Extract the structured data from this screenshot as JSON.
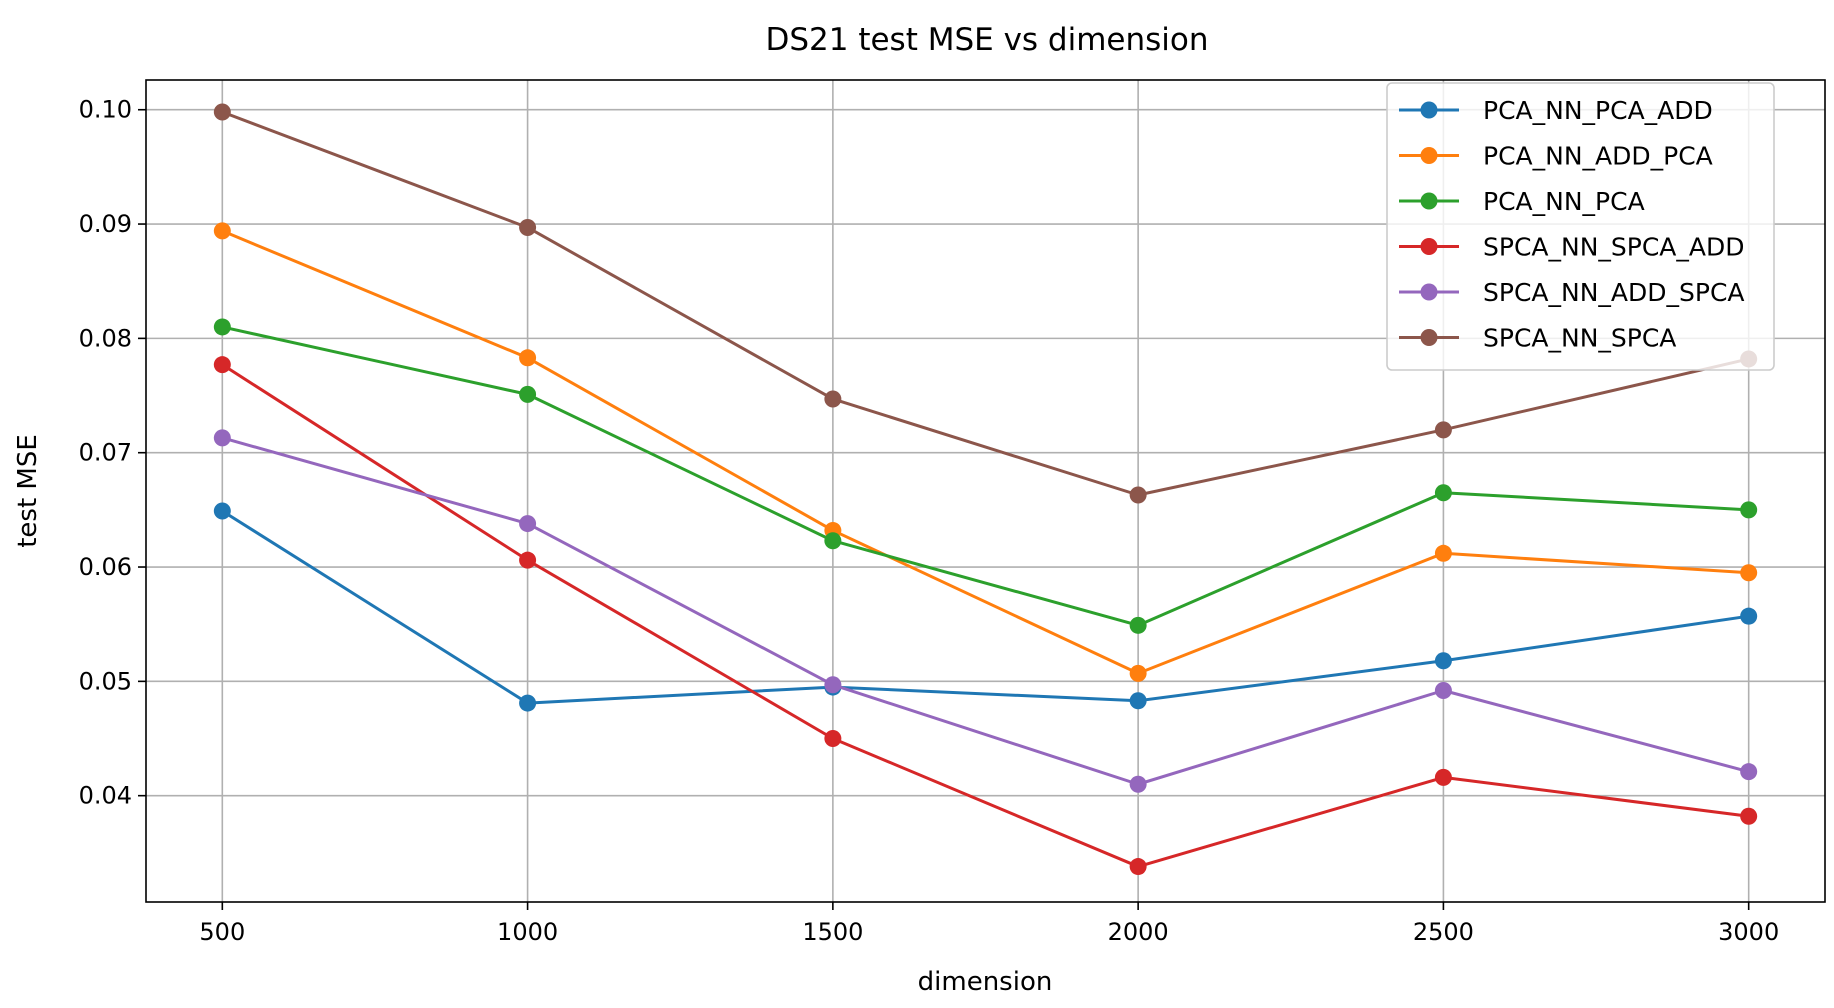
{
  "chart_data": {
    "type": "line",
    "title": "DS21 test MSE vs dimension",
    "xlabel": "dimension",
    "ylabel": "test MSE",
    "x": [
      500,
      1000,
      1500,
      2000,
      2500,
      3000
    ],
    "xlim": [
      375,
      3125
    ],
    "ylim": [
      0.0307,
      0.1026
    ],
    "xticks": [
      "500",
      "1000",
      "1500",
      "2000",
      "2500",
      "3000"
    ],
    "yticks": [
      "0.04",
      "0.05",
      "0.06",
      "0.07",
      "0.08",
      "0.09",
      "0.10"
    ],
    "grid": true,
    "legend_position": "upper right",
    "series": [
      {
        "name": "PCA_NN_PCA_ADD",
        "color": "#1f77b4",
        "values": [
          0.0649,
          0.0481,
          0.0495,
          0.0483,
          0.0518,
          0.0557
        ]
      },
      {
        "name": "PCA_NN_ADD_PCA",
        "color": "#ff7f0e",
        "values": [
          0.0894,
          0.0783,
          0.0632,
          0.0507,
          0.0612,
          0.0595
        ]
      },
      {
        "name": "PCA_NN_PCA",
        "color": "#2ca02c",
        "values": [
          0.081,
          0.0751,
          0.0623,
          0.0549,
          0.0665,
          0.065
        ]
      },
      {
        "name": "SPCA_NN_SPCA_ADD",
        "color": "#d62728",
        "values": [
          0.0777,
          0.0606,
          0.045,
          0.0338,
          0.0416,
          0.0382
        ]
      },
      {
        "name": "SPCA_NN_ADD_SPCA",
        "color": "#9467bd",
        "values": [
          0.0713,
          0.0638,
          0.0497,
          0.041,
          0.0492,
          0.0421
        ]
      },
      {
        "name": "SPCA_NN_SPCA",
        "color": "#8c564b",
        "values": [
          0.0998,
          0.0897,
          0.0747,
          0.0663,
          0.072,
          0.0782
        ]
      }
    ]
  }
}
